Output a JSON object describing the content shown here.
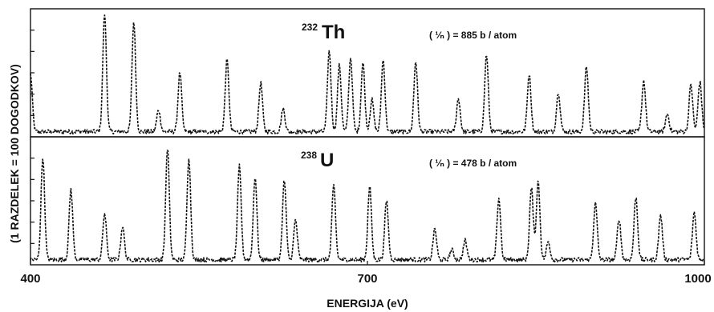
{
  "chart_data": {
    "type": "line",
    "xlabel": "ENERGIJA (eV)",
    "ylabel": "(1 RAZDELEK = 100 DOGODKOV)",
    "xlim": [
      400,
      1000
    ],
    "x_ticks": [
      400,
      700,
      1000
    ],
    "grid": false,
    "panels": [
      {
        "name": "232Th",
        "isotope_mass": "232",
        "isotope_symbol": "Th",
        "annotation": "( ¹⁄ₙ ) = 885 b / atom",
        "y_ticks": 5,
        "baseline": 0.04,
        "peaks": [
          {
            "x": 400,
            "h": 0.45
          },
          {
            "x": 466,
            "h": 0.92
          },
          {
            "x": 492,
            "h": 0.86
          },
          {
            "x": 514,
            "h": 0.17
          },
          {
            "x": 533,
            "h": 0.46
          },
          {
            "x": 575,
            "h": 0.56
          },
          {
            "x": 605,
            "h": 0.38
          },
          {
            "x": 625,
            "h": 0.18
          },
          {
            "x": 666,
            "h": 0.63
          },
          {
            "x": 675,
            "h": 0.52
          },
          {
            "x": 685,
            "h": 0.58
          },
          {
            "x": 696,
            "h": 0.54
          },
          {
            "x": 704,
            "h": 0.25
          },
          {
            "x": 714,
            "h": 0.56
          },
          {
            "x": 743,
            "h": 0.55
          },
          {
            "x": 781,
            "h": 0.26
          },
          {
            "x": 806,
            "h": 0.6
          },
          {
            "x": 844,
            "h": 0.45
          },
          {
            "x": 870,
            "h": 0.31
          },
          {
            "x": 895,
            "h": 0.51
          },
          {
            "x": 946,
            "h": 0.4
          },
          {
            "x": 967,
            "h": 0.14
          },
          {
            "x": 988,
            "h": 0.37
          },
          {
            "x": 996,
            "h": 0.39
          }
        ]
      },
      {
        "name": "238U",
        "isotope_mass": "238",
        "isotope_symbol": "U",
        "annotation": "( ¹⁄ₙ ) = 478 b / atom",
        "y_ticks": 5,
        "baseline": 0.04,
        "peaks": [
          {
            "x": 411,
            "h": 0.8
          },
          {
            "x": 436,
            "h": 0.55
          },
          {
            "x": 466,
            "h": 0.36
          },
          {
            "x": 482,
            "h": 0.26
          },
          {
            "x": 522,
            "h": 0.87
          },
          {
            "x": 541,
            "h": 0.8
          },
          {
            "x": 586,
            "h": 0.73
          },
          {
            "x": 600,
            "h": 0.65
          },
          {
            "x": 626,
            "h": 0.62
          },
          {
            "x": 636,
            "h": 0.31
          },
          {
            "x": 670,
            "h": 0.58
          },
          {
            "x": 702,
            "h": 0.57
          },
          {
            "x": 717,
            "h": 0.46
          },
          {
            "x": 760,
            "h": 0.24
          },
          {
            "x": 775,
            "h": 0.08
          },
          {
            "x": 787,
            "h": 0.15
          },
          {
            "x": 817,
            "h": 0.48
          },
          {
            "x": 846,
            "h": 0.56
          },
          {
            "x": 852,
            "h": 0.61
          },
          {
            "x": 861,
            "h": 0.14
          },
          {
            "x": 903,
            "h": 0.44
          },
          {
            "x": 924,
            "h": 0.32
          },
          {
            "x": 939,
            "h": 0.49
          },
          {
            "x": 961,
            "h": 0.35
          },
          {
            "x": 991,
            "h": 0.37
          }
        ]
      }
    ]
  }
}
